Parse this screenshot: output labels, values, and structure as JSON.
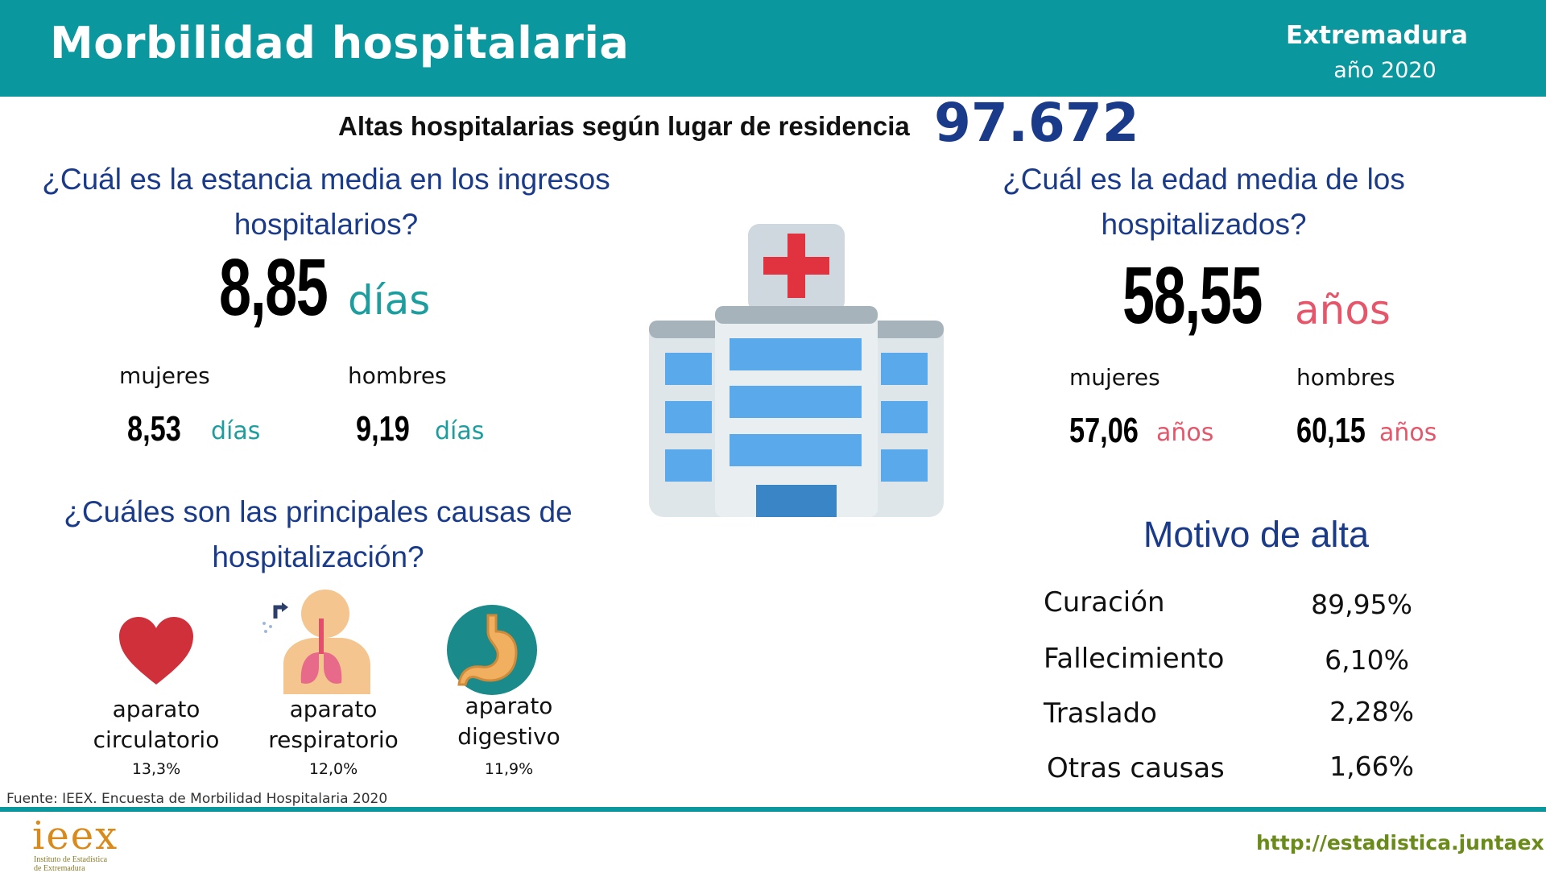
{
  "header": {
    "title": "Morbilidad hospitalaria",
    "region": "Extremadura",
    "year": "año 2020"
  },
  "altas": {
    "label": "Altas hospitalarias según lugar de residencia",
    "value": "97.672"
  },
  "estancia": {
    "question_line1": "¿Cuál es la estancia media en los ingresos",
    "question_line2": "hospitalarios?",
    "value": "8,85",
    "unit": "días",
    "women_label": "mujeres",
    "women_value": "8,53",
    "women_unit": "días",
    "men_label": "hombres",
    "men_value": "9,19",
    "men_unit": "días"
  },
  "edad": {
    "question_line1": "¿Cuál es la edad media de los",
    "question_line2": "hospitalizados?",
    "value": "58,55",
    "unit": "años",
    "women_label": "mujeres",
    "women_value": "57,06",
    "women_unit": "años",
    "men_label": "hombres",
    "men_value": "60,15",
    "men_unit": "años"
  },
  "causas": {
    "question_line1": "¿Cuáles son las principales causas de",
    "question_line2": "hospitalización?",
    "items": [
      {
        "line1": "aparato",
        "line2": "circulatorio",
        "pct": "13,3%",
        "icon": "heart-icon"
      },
      {
        "line1": "aparato",
        "line2": "respiratorio",
        "pct": "12,0%",
        "icon": "lungs-icon"
      },
      {
        "line1": "aparato",
        "line2": "digestivo",
        "pct": "11,9%",
        "icon": "stomach-icon"
      }
    ]
  },
  "motivo": {
    "title": "Motivo de alta",
    "rows": [
      {
        "label": "Curación",
        "value": "89,95%"
      },
      {
        "label": "Fallecimiento",
        "value": "6,10%"
      },
      {
        "label": "Traslado",
        "value": "2,28%"
      },
      {
        "label": "Otras causas",
        "value": "1,66%"
      }
    ]
  },
  "footer": {
    "source": "Fuente: IEEX. Encuesta de Morbilidad Hospitalaria 2020",
    "logo_text": "ieex",
    "logo_sub_line1": "Instituto de Estadística",
    "logo_sub_line2": "de Extremadura",
    "url": "http://estadistica.juntaex.es"
  },
  "colors": {
    "header": "#0a979e",
    "navy": "#1a3a8a",
    "teal_unit": "#1d9e9e",
    "red_unit": "#e5566a",
    "url_green": "#6a8a1a"
  }
}
